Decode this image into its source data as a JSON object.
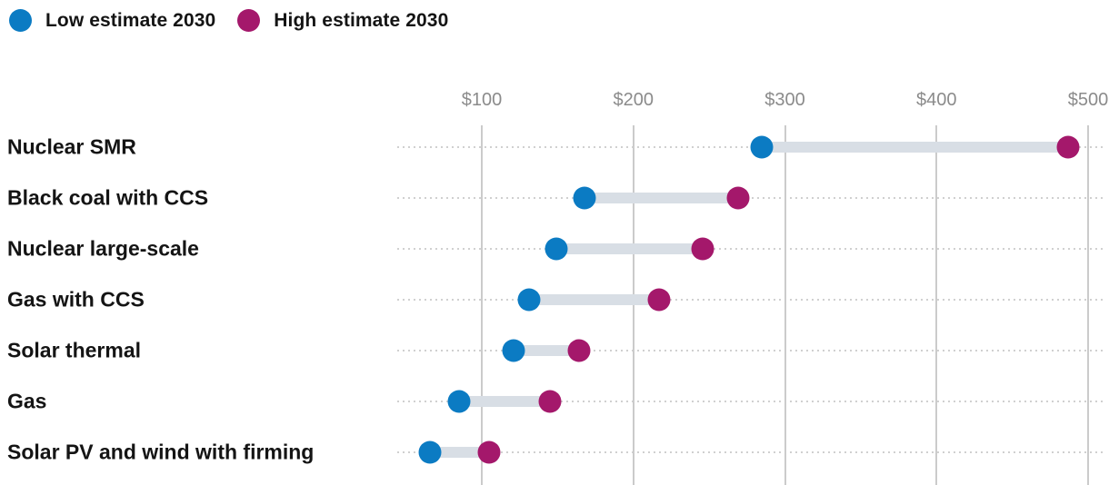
{
  "legend": {
    "items": [
      {
        "label": "Low estimate 2030",
        "color": "#0b7bc3"
      },
      {
        "label": "High estimate 2030",
        "color": "#a4186b"
      }
    ]
  },
  "chart_data": {
    "type": "scatter",
    "subtype": "dumbbell-range",
    "categories": [
      "Nuclear SMR",
      "Black coal with CCS",
      "Nuclear large-scale",
      "Gas with CCS",
      "Solar thermal",
      "Gas",
      "Solar PV and wind with firming"
    ],
    "series": [
      {
        "name": "Low estimate 2030",
        "color": "#0b7bc3",
        "values": [
          285,
          168,
          149,
          131,
          121,
          85,
          66
        ]
      },
      {
        "name": "High estimate 2030",
        "color": "#a4186b",
        "values": [
          487,
          269,
          246,
          217,
          164,
          145,
          105
        ]
      }
    ],
    "x_axis": {
      "tick_values": [
        100,
        200,
        300,
        400,
        500
      ],
      "tick_labels": [
        "$100",
        "$200",
        "$300",
        "$400",
        "$500"
      ],
      "range": [
        45,
        510
      ],
      "unit": "dollars"
    },
    "grid": true,
    "legend_position": "top-left",
    "colors": {
      "connector_bar": "#d8dee5",
      "gridline": "#cbcbcb",
      "row_dotted_line": "#d0d0d0",
      "tick_label": "#8b8b8b",
      "category_label": "#141414"
    }
  }
}
